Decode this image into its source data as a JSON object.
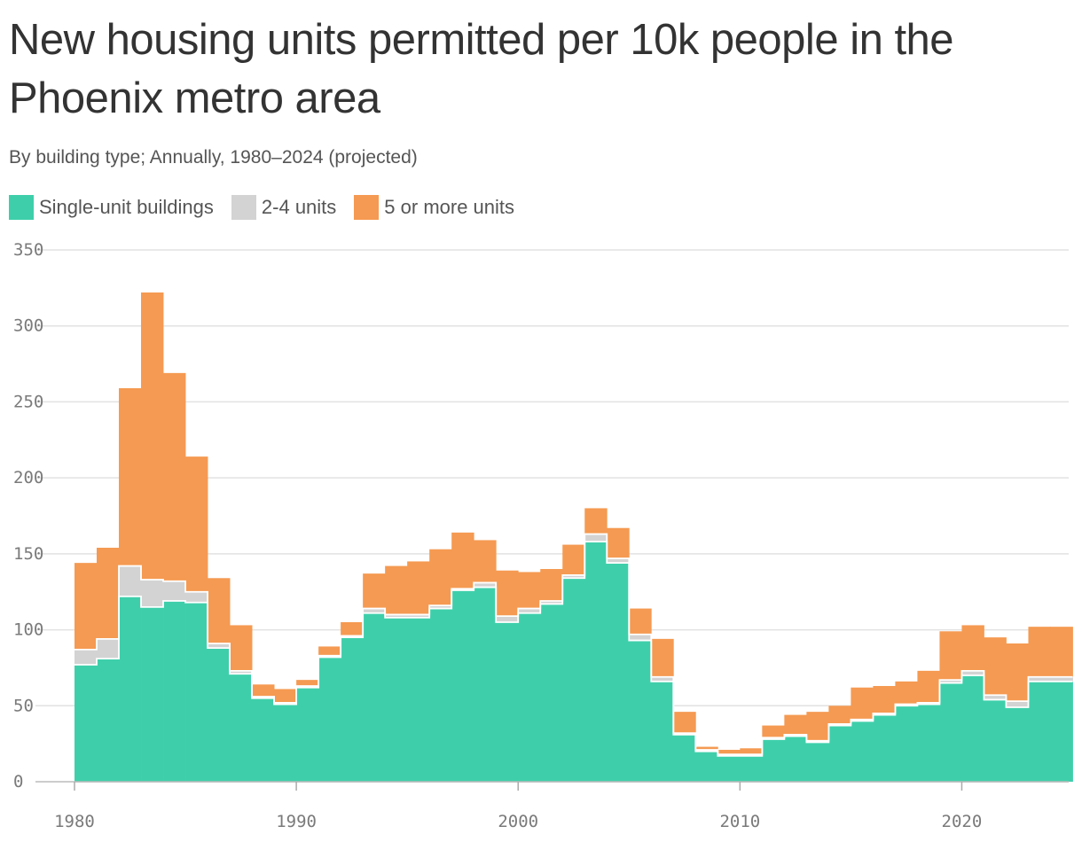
{
  "title": "New housing units permitted per 10k people in the Phoenix metro area",
  "subtitle": "By building type; Annually, 1980–2024 (projected)",
  "legend": [
    {
      "label": "Single-unit buildings",
      "color": "#3ecfaa"
    },
    {
      "label": "2-4 units",
      "color": "#d3d3d3"
    },
    {
      "label": "5 or more units",
      "color": "#f59a52"
    }
  ],
  "chart_data": {
    "type": "area",
    "stacked": true,
    "step": true,
    "x_label": "",
    "y_label": "",
    "ylim": [
      0,
      350
    ],
    "xlim": [
      1980,
      2025
    ],
    "yticks": [
      0,
      50,
      100,
      150,
      200,
      250,
      300,
      350
    ],
    "xticks": [
      1980,
      1990,
      2000,
      2010,
      2020
    ],
    "grid": true,
    "legend_position": "top-left",
    "years": [
      1980,
      1981,
      1982,
      1983,
      1984,
      1985,
      1986,
      1987,
      1988,
      1989,
      1990,
      1991,
      1992,
      1993,
      1994,
      1995,
      1996,
      1997,
      1998,
      1999,
      2000,
      2001,
      2002,
      2003,
      2004,
      2005,
      2006,
      2007,
      2008,
      2009,
      2010,
      2011,
      2012,
      2013,
      2014,
      2015,
      2016,
      2017,
      2018,
      2019,
      2020,
      2021,
      2022,
      2023,
      2024
    ],
    "series": [
      {
        "name": "Single-unit buildings",
        "color": "#3ecfaa",
        "values": [
          77,
          81,
          122,
          115,
          119,
          118,
          88,
          71,
          55,
          51,
          62,
          82,
          95,
          111,
          108,
          108,
          114,
          126,
          128,
          105,
          111,
          117,
          134,
          158,
          144,
          93,
          66,
          31,
          20,
          17,
          17,
          28,
          30,
          26,
          37,
          40,
          44,
          50,
          51,
          65,
          70,
          54,
          49,
          66,
          66
        ]
      },
      {
        "name": "2-4 units",
        "color": "#d3d3d3",
        "values": [
          10,
          13,
          20,
          18,
          13,
          7,
          3,
          2,
          1,
          1,
          1,
          1,
          1,
          3,
          2,
          2,
          2,
          1,
          3,
          4,
          3,
          2,
          2,
          5,
          3,
          4,
          3,
          1,
          1,
          1,
          1,
          1,
          1,
          1,
          1,
          1,
          1,
          1,
          1,
          2,
          3,
          3,
          4,
          3,
          3
        ]
      },
      {
        "name": "5 or more units",
        "color": "#f59a52",
        "values": [
          57,
          60,
          117,
          189,
          137,
          89,
          43,
          30,
          8,
          9,
          4,
          6,
          9,
          23,
          32,
          35,
          37,
          37,
          28,
          30,
          24,
          21,
          20,
          17,
          20,
          17,
          25,
          14,
          2,
          3,
          4,
          8,
          13,
          19,
          12,
          21,
          18,
          15,
          21,
          32,
          30,
          38,
          38,
          33,
          33
        ]
      }
    ]
  }
}
